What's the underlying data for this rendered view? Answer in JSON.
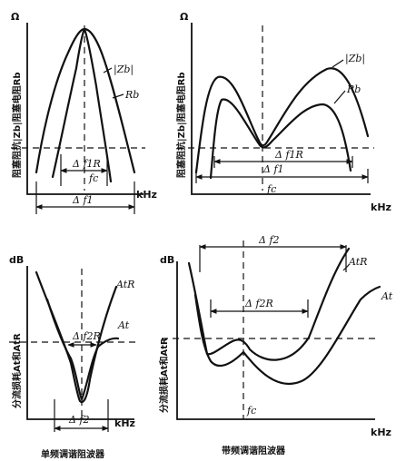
{
  "panel_top_left": {
    "y_unit": "Ω",
    "x_unit": "kHz",
    "y_label": "阻塞阻抗|Zb|阻塞电阻Rb",
    "curve_labels": [
      "|Zb|",
      "Rb"
    ],
    "annotations": [
      "Δ f1R",
      "Δ f1",
      "fc"
    ]
  },
  "panel_top_right": {
    "y_unit": "Ω",
    "x_unit": "kHz",
    "y_label": "阻塞阻抗|Zb|阻塞电阻Rb",
    "curve_labels": [
      "|Zb|",
      "Rb"
    ],
    "annotations": [
      "Δ f1R",
      "Δ f1",
      "fc"
    ]
  },
  "panel_bottom_left": {
    "y_unit": "dB",
    "x_unit": "kHz",
    "y_label": "分流损耗At和AtR",
    "curve_labels": [
      "AtR",
      "At"
    ],
    "annotations": [
      "Δ f2R",
      "Δ f2"
    ],
    "caption": "单频调谐阻波器"
  },
  "panel_bottom_right": {
    "y_unit": "dB",
    "x_unit": "kHz",
    "y_label": "分流损耗At和AtR",
    "curve_labels": [
      "AtR",
      "At"
    ],
    "annotations": [
      "Δ f2",
      "Δ f2R",
      "fc"
    ],
    "caption": "带频调谐阻波器"
  }
}
